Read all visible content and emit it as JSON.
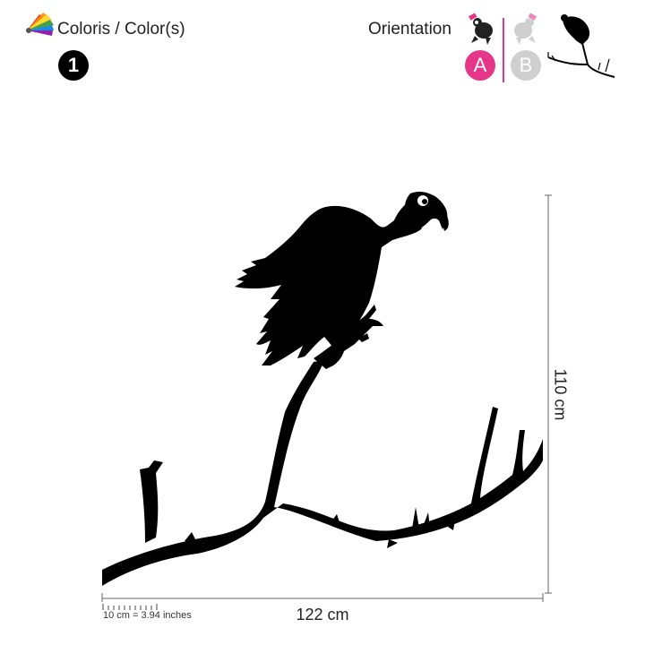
{
  "header": {
    "colors_title": "Coloris / Color(s)",
    "color_count": "1",
    "orientation_title": "Orientation",
    "orientation_options": [
      {
        "label": "A",
        "color": "#e5368a",
        "selected": true
      },
      {
        "label": "B",
        "color": "#cfcfcf",
        "selected": false
      }
    ],
    "accent_color": "#e5368a"
  },
  "icons": {
    "palette": "color-palette-icon",
    "bird_dark": "vulture-icon",
    "bird_light": "vulture-mirrored-icon",
    "preview": "vulture-branch-preview-icon"
  },
  "dimensions": {
    "width_label": "122 cm",
    "height_label": "110 cm",
    "scale_label": "10 cm = 3.94 inches"
  },
  "artwork": {
    "name": "vulture-on-branch-silhouette",
    "fill_color": "#000000"
  }
}
